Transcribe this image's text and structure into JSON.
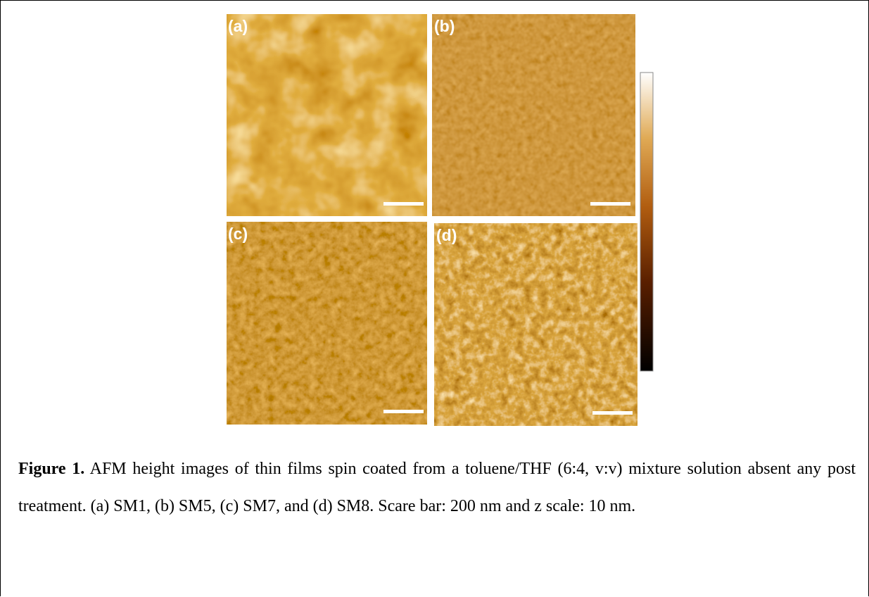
{
  "figure": {
    "panels": [
      {
        "label": "(a)"
      },
      {
        "label": "(b)"
      },
      {
        "label": "(c)"
      },
      {
        "label": "(d)"
      }
    ]
  },
  "caption": {
    "label": "Figure 1.",
    "text": "AFM height images of thin films spin coated from a toluene/THF (6:4, v:v) mixture solution absent any post treatment. (a) SM1, (b) SM5, (c) SM7, and (d) SM8. Scare bar: 200 nm and z scale: 10 nm."
  }
}
